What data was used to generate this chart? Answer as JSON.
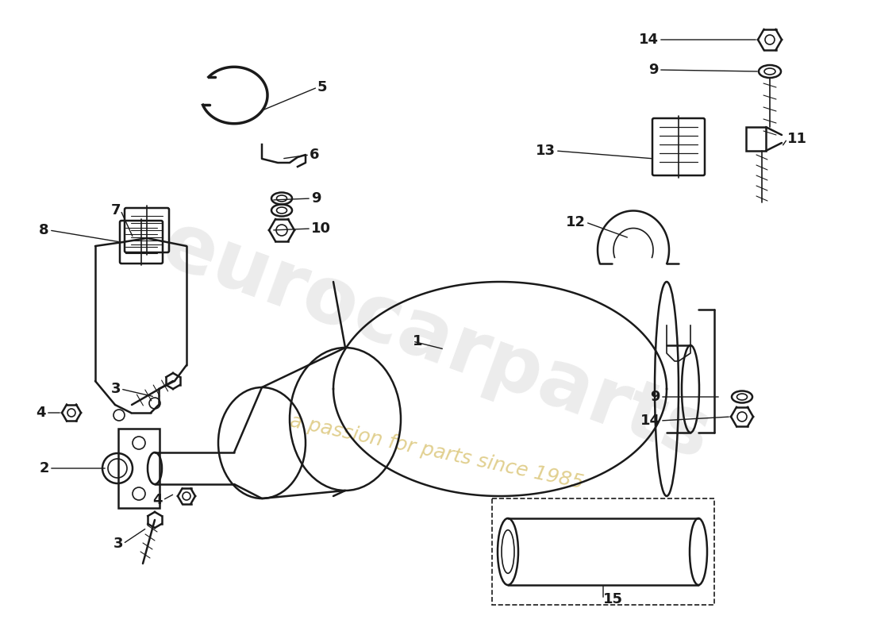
{
  "bg_color": "#ffffff",
  "line_color": "#1a1a1a",
  "watermark_text": "eurocarparts",
  "watermark_subtext": "a passion for parts since 1985",
  "figsize": [
    11.0,
    8.0
  ],
  "dpi": 100
}
